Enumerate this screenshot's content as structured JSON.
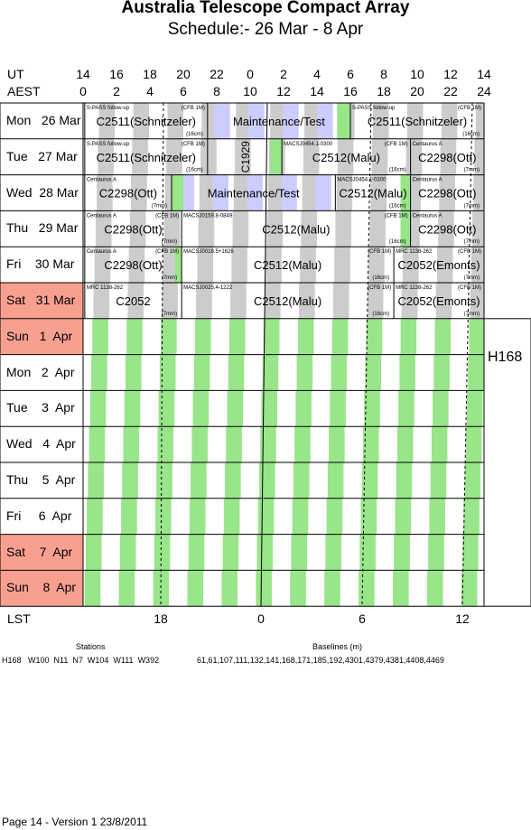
{
  "header": {
    "title": "Australia Telescope Compact Array",
    "subtitle": "Schedule:- 26 Mar - 8  Apr"
  },
  "axes": {
    "ut_label": "UT",
    "aest_label": "AEST",
    "ut_ticks": [
      "14",
      "16",
      "18",
      "20",
      "22",
      "0",
      "2",
      "4",
      "6",
      "8",
      "10",
      "12",
      "14"
    ],
    "aest_ticks": [
      "0",
      "2",
      "4",
      "6",
      "8",
      "10",
      "12",
      "14",
      "16",
      "18",
      "20",
      "22",
      "24"
    ],
    "lst_label": "LST",
    "lst_ticks": [
      "18",
      "0",
      "6",
      "12"
    ]
  },
  "days": [
    {
      "label": "Mon   26 Mar",
      "weekend": false
    },
    {
      "label": "Tue   27 Mar",
      "weekend": false
    },
    {
      "label": "Wed  28 Mar",
      "weekend": false
    },
    {
      "label": "Thu   29 Mar",
      "weekend": false
    },
    {
      "label": "Fri    30 Mar",
      "weekend": false
    },
    {
      "label": "Sat   31 Mar",
      "weekend": true
    },
    {
      "label": "Sun   1  Apr",
      "weekend": true
    },
    {
      "label": "Mon   2  Apr",
      "weekend": false
    },
    {
      "label": "Tue    3  Apr",
      "weekend": false
    },
    {
      "label": "Wed   4  Apr",
      "weekend": false
    },
    {
      "label": "Thu    5  Apr",
      "weekend": false
    },
    {
      "label": "Fri     6  Apr",
      "weekend": false
    },
    {
      "label": "Sat    7  Apr",
      "weekend": true
    },
    {
      "label": "Sun    8  Apr",
      "weekend": true
    }
  ],
  "observations": [
    {
      "day": 0,
      "start": 0.1,
      "end": 7.45,
      "name": "C2511(Schnitzeler)",
      "src": "S-PASS follow-up",
      "rx": "(CFB 1M)",
      "band": "(16cm)"
    },
    {
      "day": 0,
      "start": 7.45,
      "end": 16.0,
      "name": "Maintenance/Test",
      "src": "",
      "rx": "",
      "band": ""
    },
    {
      "day": 0,
      "start": 16.0,
      "end": 24.0,
      "name": "C2511(Schnitzeler)",
      "src": "S-PASS follow-up",
      "rx": "(CFB 1M)",
      "band": "(16cm)"
    },
    {
      "day": 1,
      "start": 0.1,
      "end": 7.45,
      "name": "C2511(Schnitzeler)",
      "src": "S-PASS follow-up",
      "rx": "(CFB 1M)",
      "band": "(16cm)"
    },
    {
      "day": 1,
      "start": 7.45,
      "end": 11.9,
      "name": "C1929",
      "src": "",
      "rx": "",
      "band": "",
      "vertical": true
    },
    {
      "day": 1,
      "start": 11.9,
      "end": 19.6,
      "name": "C2512(Malu)",
      "src": "MACSJ0454.1-0300",
      "rx": "(CFB 1M)",
      "band": "(16cm)"
    },
    {
      "day": 1,
      "start": 19.6,
      "end": 24.0,
      "name": "C2298(Ott)",
      "src": "Centaurus A",
      "rx": "",
      "band": "(7mm)"
    },
    {
      "day": 2,
      "start": 0.1,
      "end": 5.3,
      "name": "C2298(Ott)",
      "src": "Centaurus A",
      "rx": "",
      "band": "(7mm)"
    },
    {
      "day": 2,
      "start": 5.3,
      "end": 15.1,
      "name": "Maintenance/Test",
      "src": "",
      "rx": "",
      "band": ""
    },
    {
      "day": 2,
      "start": 15.1,
      "end": 19.6,
      "name": "C2512(Malu)",
      "src": "MACSJ0454.1-0300",
      "rx": "",
      "band": "(16cm)"
    },
    {
      "day": 2,
      "start": 19.6,
      "end": 24.0,
      "name": "C2298(Ott)",
      "src": "Centaurus A",
      "rx": "",
      "band": "(7mm)"
    },
    {
      "day": 3,
      "start": 0.1,
      "end": 5.9,
      "name": "C2298(Ott)",
      "src": "Centaurus A",
      "rx": "(CFB 1M)",
      "band": "(7mm)"
    },
    {
      "day": 3,
      "start": 5.9,
      "end": 19.6,
      "name": "C2512(Malu)",
      "src": "MACSJ0159.8-0849",
      "rx": "(CFB 1M)",
      "band": "(16cm)"
    },
    {
      "day": 3,
      "start": 19.6,
      "end": 24.0,
      "name": "C2298(Ott)",
      "src": "Centaurus A",
      "rx": "",
      "band": "(7mm)"
    },
    {
      "day": 4,
      "start": 0.1,
      "end": 5.9,
      "name": "C2298(Ott)",
      "src": "Centaurus A",
      "rx": "(CFB 1M)",
      "band": "(7mm)"
    },
    {
      "day": 4,
      "start": 5.9,
      "end": 18.6,
      "name": "C2512(Malu)",
      "src": "MACSJ0018.5+1626",
      "rx": "(CFB 1M)",
      "band": "(16cm)"
    },
    {
      "day": 4,
      "start": 18.6,
      "end": 24.0,
      "name": "C2052(Emonts)",
      "src": "MRC 1138-262",
      "rx": "(CFB 1M)",
      "band": "(7mm)"
    },
    {
      "day": 5,
      "start": 0.1,
      "end": 5.9,
      "name": "C2052",
      "src": "MRC 1138-262",
      "rx": "",
      "band": "(7mm)"
    },
    {
      "day": 5,
      "start": 5.9,
      "end": 18.6,
      "name": "C2512(Malu)",
      "src": "MACSJ0025.4-1222",
      "rx": "(CFB 1M)",
      "band": "(16cm)"
    },
    {
      "day": 5,
      "start": 18.6,
      "end": 24.0,
      "name": "C2052(Emonts)",
      "src": "MRC 1138-262",
      "rx": "(CFB 1M)",
      "band": "(7mm)"
    }
  ],
  "config": {
    "name": "H168"
  },
  "stations": {
    "title": "Stations",
    "value": "H168   W100  N11  N7  W104  W111  W392"
  },
  "baselines": {
    "title": "Baselines (m)",
    "value": "61,61,107,111,132,141,168,171,185,192,4301,4379,4381,4408,4469"
  },
  "footer": {
    "text": "Page 14 - Version 1  23/8/2011"
  },
  "colors": {
    "green": "#99e58a",
    "gray": "#cccccc",
    "lavender": "#ccccff",
    "weekend": "#f8a090"
  }
}
